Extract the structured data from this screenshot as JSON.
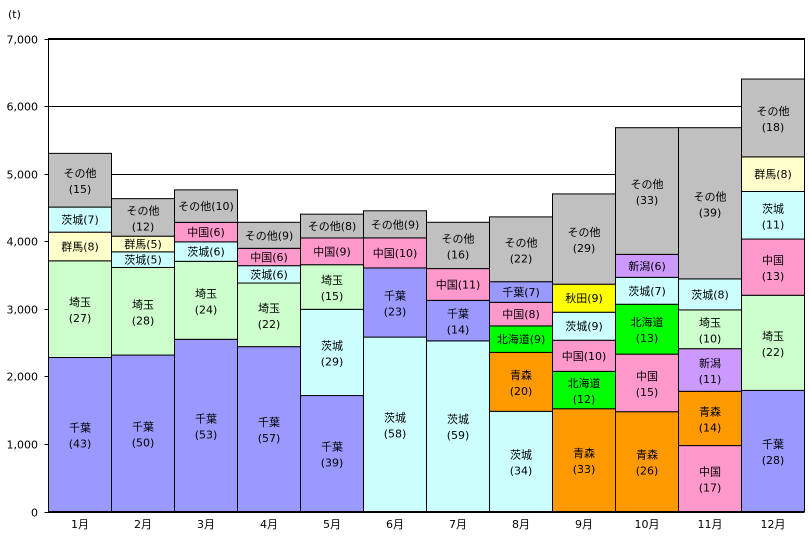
{
  "chart_data": {
    "type": "bar",
    "stacked": true,
    "title": "",
    "ylabel": "(t)",
    "xlabel": "",
    "ylim": [
      0,
      7000
    ],
    "yticks": [
      0,
      1000,
      2000,
      3000,
      4000,
      5000,
      6000,
      7000
    ],
    "ytick_labels": [
      "0",
      "1,000",
      "2,000",
      "3,000",
      "4,000",
      "5,000",
      "6,000",
      "7,000"
    ],
    "grid": true,
    "colors": {
      "千葉": "#9999ff",
      "埼玉": "#ccffcc",
      "群馬": "#ffffcc",
      "茨城": "#ccffff",
      "その他": "#c0c0c0",
      "中国": "#ff99cc",
      "青森": "#ff9900",
      "北海道": "#00ff00",
      "秋田": "#ffff00",
      "新潟": "#cc99ff"
    },
    "categories": [
      "1月",
      "2月",
      "3月",
      "4月",
      "5月",
      "6月",
      "7月",
      "8月",
      "9月",
      "10月",
      "11月",
      "12月"
    ],
    "bars": [
      {
        "total": 5300,
        "segments": [
          [
            "千葉",
            43
          ],
          [
            "埼玉",
            27
          ],
          [
            "群馬",
            8
          ],
          [
            "茨城",
            7
          ],
          [
            "その他",
            15
          ]
        ]
      },
      {
        "total": 4630,
        "segments": [
          [
            "千葉",
            50
          ],
          [
            "埼玉",
            28
          ],
          [
            "茨城",
            5
          ],
          [
            "群馬",
            5
          ],
          [
            "その他",
            12
          ]
        ]
      },
      {
        "total": 4760,
        "segments": [
          [
            "千葉",
            53
          ],
          [
            "埼玉",
            24
          ],
          [
            "茨城",
            6
          ],
          [
            "中国",
            6
          ],
          [
            "その他",
            10
          ]
        ]
      },
      {
        "total": 4280,
        "segments": [
          [
            "千葉",
            57
          ],
          [
            "埼玉",
            22
          ],
          [
            "茨城",
            6
          ],
          [
            "中国",
            6
          ],
          [
            "その他",
            9
          ]
        ]
      },
      {
        "total": 4400,
        "segments": [
          [
            "千葉",
            39
          ],
          [
            "茨城",
            29
          ],
          [
            "埼玉",
            15
          ],
          [
            "中国",
            9
          ],
          [
            "その他",
            8
          ]
        ]
      },
      {
        "total": 4450,
        "segments": [
          [
            "茨城",
            58
          ],
          [
            "千葉",
            23
          ],
          [
            "中国",
            10
          ],
          [
            "その他",
            9
          ]
        ]
      },
      {
        "total": 4280,
        "segments": [
          [
            "茨城",
            59
          ],
          [
            "千葉",
            14
          ],
          [
            "中国",
            11
          ],
          [
            "その他",
            16
          ]
        ]
      },
      {
        "total": 4360,
        "segments": [
          [
            "茨城",
            34
          ],
          [
            "青森",
            20
          ],
          [
            "北海道",
            9
          ],
          [
            "中国",
            8
          ],
          [
            "千葉",
            7
          ],
          [
            "その他",
            22
          ]
        ]
      },
      {
        "total": 4700,
        "segments": [
          [
            "青森",
            33
          ],
          [
            "北海道",
            12
          ],
          [
            "中国",
            10
          ],
          [
            "茨城",
            9
          ],
          [
            "秋田",
            9
          ],
          [
            "その他",
            29
          ]
        ]
      },
      {
        "total": 5680,
        "segments": [
          [
            "青森",
            26
          ],
          [
            "中国",
            15
          ],
          [
            "北海道",
            13
          ],
          [
            "茨城",
            7
          ],
          [
            "新潟",
            6
          ],
          [
            "その他",
            33
          ]
        ]
      },
      {
        "total": 5680,
        "segments": [
          [
            "中国",
            17
          ],
          [
            "青森",
            14
          ],
          [
            "新潟",
            11
          ],
          [
            "埼玉",
            10
          ],
          [
            "茨城",
            8
          ],
          [
            "その他",
            39
          ]
        ]
      },
      {
        "total": 6400,
        "segments": [
          [
            "千葉",
            28
          ],
          [
            "埼玉",
            22
          ],
          [
            "中国",
            13
          ],
          [
            "茨城",
            11
          ],
          [
            "群馬",
            8
          ],
          [
            "その他",
            18
          ]
        ]
      }
    ]
  }
}
